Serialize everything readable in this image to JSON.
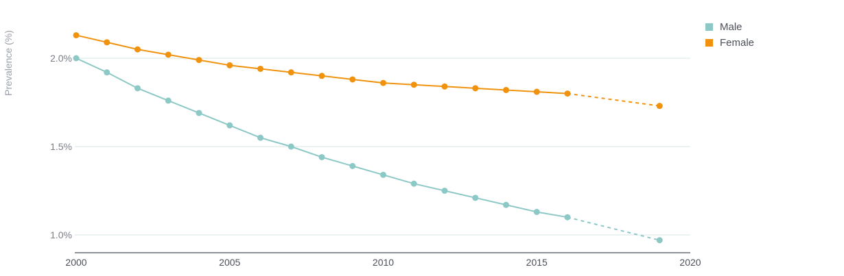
{
  "chart_data": {
    "type": "line",
    "title": "",
    "xlabel": "",
    "ylabel": "Prevalence (%)",
    "xlim": [
      2000,
      2020
    ],
    "ylim": [
      0.9,
      2.2
    ],
    "x_ticks": [
      2000,
      2005,
      2010,
      2015,
      2020
    ],
    "y_ticks": [
      {
        "value": 1.0,
        "label": "1.0%"
      },
      {
        "value": 1.5,
        "label": "1.5%"
      },
      {
        "value": 2.0,
        "label": "2.0%"
      }
    ],
    "grid": true,
    "legend_position": "top-right",
    "series": [
      {
        "name": "Male",
        "color": "#8cc8c6",
        "x": [
          2000,
          2001,
          2002,
          2003,
          2004,
          2005,
          2006,
          2007,
          2008,
          2009,
          2010,
          2011,
          2012,
          2013,
          2014,
          2015,
          2016,
          2019
        ],
        "values": [
          2.0,
          1.92,
          1.83,
          1.76,
          1.69,
          1.62,
          1.55,
          1.5,
          1.44,
          1.39,
          1.34,
          1.29,
          1.25,
          1.21,
          1.17,
          1.13,
          1.1,
          0.97
        ],
        "dashed_from": 2016
      },
      {
        "name": "Female",
        "color": "#f0920d",
        "x": [
          2000,
          2001,
          2002,
          2003,
          2004,
          2005,
          2006,
          2007,
          2008,
          2009,
          2010,
          2011,
          2012,
          2013,
          2014,
          2015,
          2016,
          2019
        ],
        "values": [
          2.13,
          2.09,
          2.05,
          2.02,
          1.99,
          1.96,
          1.94,
          1.92,
          1.9,
          1.88,
          1.86,
          1.85,
          1.84,
          1.83,
          1.82,
          1.81,
          1.8,
          1.73
        ],
        "dashed_from": 2016
      }
    ]
  },
  "colors": {
    "grid": "#d7e7e6",
    "axis": "#4b4f58",
    "tick_text": "#7a7f88",
    "ylabel_text": "#9aa0a8"
  }
}
